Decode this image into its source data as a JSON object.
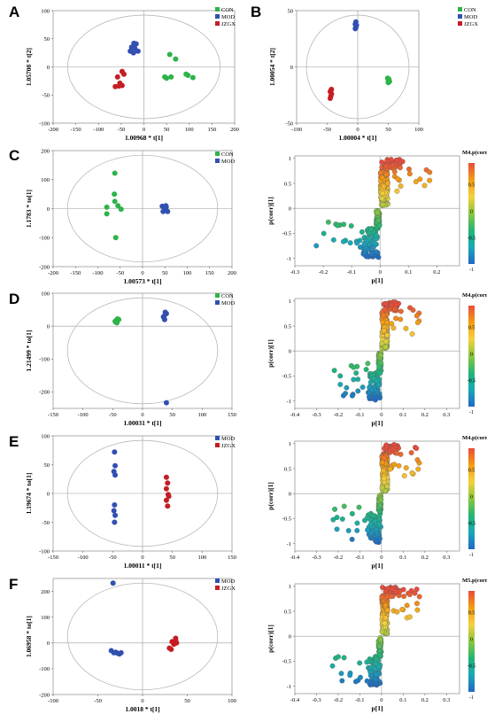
{
  "panel_letters": [
    "A",
    "B",
    "C",
    "D",
    "E",
    "F"
  ],
  "colors": {
    "CON": "#2db34a",
    "MOD": "#3150b0",
    "JZGX": "#c41e24",
    "gradient": [
      "#2166c4",
      "#19a7b8",
      "#22b573",
      "#8dc63f",
      "#f4d03f",
      "#f39c12",
      "#e74c3c"
    ]
  },
  "chart_data": [
    {
      "type": "scatter",
      "panel": "A",
      "xlabel": "1.00968 * t[1]",
      "ylabel": "1.05708 * t[2]",
      "xlim": [
        -200,
        200
      ],
      "ylim": [
        -100,
        100
      ],
      "xticks": [
        -200,
        -150,
        -100,
        -50,
        0,
        50,
        100,
        150,
        200
      ],
      "yticks": [
        -100,
        -50,
        0,
        50,
        100
      ],
      "legend": [
        "CON",
        "MOD",
        "JZGX"
      ],
      "series": [
        {
          "name": "CON",
          "color": "#2db34a",
          "points": [
            [
              57,
              22
            ],
            [
              70,
              14
            ],
            [
              93,
              -13
            ],
            [
              97,
              -15
            ],
            [
              108,
              -19
            ],
            [
              60,
              -18
            ],
            [
              50,
              -20
            ],
            [
              46,
              -18
            ]
          ]
        },
        {
          "name": "MOD",
          "color": "#3150b0",
          "points": [
            [
              -30,
              28
            ],
            [
              -27,
              35
            ],
            [
              -22,
              42
            ],
            [
              -20,
              33
            ],
            [
              -17,
              41
            ],
            [
              -13,
              28
            ],
            [
              -23,
              25
            ]
          ]
        },
        {
          "name": "JZGX",
          "color": "#c41e24",
          "points": [
            [
              -48,
              -8
            ],
            [
              -44,
              -13
            ],
            [
              -58,
              -18
            ],
            [
              -53,
              -29
            ],
            [
              -63,
              -35
            ],
            [
              -55,
              -34
            ],
            [
              -48,
              -33
            ]
          ]
        }
      ]
    },
    {
      "type": "scatter",
      "panel": "B",
      "xlabel": "1.00004 * t[1]",
      "ylabel": "1.00054 * t[2]",
      "xlim": [
        -100,
        100
      ],
      "ylim": [
        -50,
        50
      ],
      "xticks": [
        -100,
        -50,
        0,
        50,
        100
      ],
      "yticks": [
        -50,
        0,
        50
      ],
      "legend": [
        "CON",
        "MOD",
        "JZGX"
      ],
      "series": [
        {
          "name": "CON",
          "color": "#2db34a",
          "points": [
            [
              49,
              -10
            ],
            [
              50,
              -12
            ],
            [
              51,
              -11
            ],
            [
              52,
              -13
            ],
            [
              50,
              -14
            ],
            [
              51,
              -12
            ]
          ]
        },
        {
          "name": "MOD",
          "color": "#3150b0",
          "points": [
            [
              -3,
              35
            ],
            [
              -4,
              38
            ],
            [
              -2,
              37
            ],
            [
              -3,
              40
            ],
            [
              -4,
              34
            ],
            [
              -3,
              36
            ]
          ]
        },
        {
          "name": "JZGX",
          "color": "#c41e24",
          "points": [
            [
              -43,
              -20
            ],
            [
              -45,
              -22
            ],
            [
              -44,
              -26
            ],
            [
              -43,
              -24
            ],
            [
              -45,
              -28
            ],
            [
              -44,
              -21
            ]
          ]
        }
      ]
    },
    {
      "type": "scatter",
      "panel": "C",
      "xlabel": "1.00573 * t[1]",
      "ylabel": "1.1783 * to[1]",
      "xlim": [
        -200,
        200
      ],
      "ylim": [
        -200,
        200
      ],
      "xticks": [
        -200,
        -150,
        -100,
        -50,
        0,
        50,
        100,
        150,
        200
      ],
      "yticks": [
        -200,
        -100,
        0,
        100,
        200
      ],
      "legend": [
        "CON",
        "MOD"
      ],
      "series": [
        {
          "name": "CON",
          "color": "#2db34a",
          "points": [
            [
              -62,
              122
            ],
            [
              -63,
              50
            ],
            [
              -62,
              25
            ],
            [
              -80,
              5
            ],
            [
              -55,
              10
            ],
            [
              -48,
              -2
            ],
            [
              -80,
              -18
            ],
            [
              -60,
              -100
            ]
          ]
        },
        {
          "name": "MOD",
          "color": "#3150b0",
          "points": [
            [
              44,
              8
            ],
            [
              52,
              10
            ],
            [
              50,
              -3
            ],
            [
              56,
              -10
            ],
            [
              46,
              -10
            ],
            [
              53,
              6
            ]
          ]
        }
      ]
    },
    {
      "type": "scatter",
      "panel": "C-loading",
      "xlabel": "p[1]",
      "ylabel": "p(corr)[1]",
      "colorbar_label": "M4.p(corr)[1]",
      "colorbar_ticks": [
        0.5,
        0,
        -0.5,
        -1
      ],
      "xlim": [
        -0.3,
        0.28
      ],
      "ylim": [
        -1.15,
        1.05
      ],
      "xticks": [
        -0.3,
        -0.2,
        -0.1,
        0,
        0.1,
        0.2
      ],
      "yticks": [
        -1,
        -0.5,
        0,
        0.5,
        1
      ],
      "variables": 340
    },
    {
      "type": "scatter",
      "panel": "D",
      "xlabel": "1.00031 * t[1]",
      "ylabel": "1.21499 * to[1]",
      "xlim": [
        -150,
        150
      ],
      "ylim": [
        -250,
        100
      ],
      "xticks": [
        -150,
        -100,
        -50,
        0,
        50,
        100,
        150
      ],
      "yticks": [
        -200,
        -100,
        0,
        100
      ],
      "legend": [
        "CON",
        "MOD"
      ],
      "series": [
        {
          "name": "CON",
          "color": "#2db34a",
          "points": [
            [
              -42,
              22
            ],
            [
              -44,
              18
            ],
            [
              -40,
              20
            ],
            [
              -46,
              15
            ],
            [
              -43,
              10
            ],
            [
              -45,
              12
            ]
          ]
        },
        {
          "name": "MOD",
          "color": "#3150b0",
          "points": [
            [
              38,
              42
            ],
            [
              40,
              38
            ],
            [
              36,
              30
            ],
            [
              37,
              20
            ],
            [
              35,
              28
            ],
            [
              40,
              -233
            ]
          ]
        }
      ]
    },
    {
      "type": "scatter",
      "panel": "D-loading",
      "xlabel": "p[1]",
      "ylabel": "p(corr)[1]",
      "colorbar_label": "M4.p(corr)[1]",
      "colorbar_ticks": [
        0.5,
        0,
        -0.5,
        -1
      ],
      "xlim": [
        -0.4,
        0.36
      ],
      "ylim": [
        -1.15,
        1.05
      ],
      "xticks": [
        -0.4,
        -0.3,
        -0.2,
        -0.1,
        0,
        0.1,
        0.2,
        0.3
      ],
      "yticks": [
        -1,
        -0.5,
        0,
        0.5,
        1
      ],
      "variables": 340
    },
    {
      "type": "scatter",
      "panel": "E",
      "xlabel": "1.00011 * t[1]",
      "ylabel": "1.19674 * to[1]",
      "xlim": [
        -150,
        150
      ],
      "ylim": [
        -100,
        100
      ],
      "xticks": [
        -150,
        -100,
        -50,
        0,
        50,
        100,
        150
      ],
      "yticks": [
        -100,
        -50,
        0,
        50,
        100
      ],
      "legend": [
        "MOD",
        "JZGX"
      ],
      "series": [
        {
          "name": "MOD",
          "color": "#3150b0",
          "points": [
            [
              -47,
              72
            ],
            [
              -46,
              48
            ],
            [
              -48,
              38
            ],
            [
              -46,
              32
            ],
            [
              -47,
              -20
            ],
            [
              -48,
              -30
            ],
            [
              -46,
              -38
            ],
            [
              -47,
              -50
            ]
          ]
        },
        {
          "name": "JZGX",
          "color": "#c41e24",
          "points": [
            [
              40,
              28
            ],
            [
              42,
              18
            ],
            [
              40,
              8
            ],
            [
              43,
              -2
            ],
            [
              40,
              -12
            ],
            [
              42,
              -22
            ],
            [
              44,
              -5
            ]
          ]
        }
      ]
    },
    {
      "type": "scatter",
      "panel": "E-loading",
      "xlabel": "p[1]",
      "ylabel": "p(corr)[1]",
      "colorbar_label": "M4.p(corr)[1]",
      "colorbar_ticks": [
        0.5,
        0,
        -0.5,
        -1
      ],
      "xlim": [
        -0.4,
        0.36
      ],
      "ylim": [
        -1.15,
        1.05
      ],
      "xticks": [
        -0.4,
        -0.3,
        -0.2,
        -0.1,
        0,
        0.1,
        0.2,
        0.3
      ],
      "yticks": [
        -1,
        -0.5,
        0,
        0.5,
        1
      ],
      "variables": 340
    },
    {
      "type": "scatter",
      "panel": "F",
      "xlabel": "1.0018 * t[1]",
      "ylabel": "1.06958 * to[1]",
      "xlim": [
        -100,
        100
      ],
      "ylim": [
        -200,
        250
      ],
      "xticks": [
        -100,
        -50,
        0,
        50,
        100
      ],
      "yticks": [
        -200,
        -100,
        0,
        100,
        200
      ],
      "legend": [
        "MOD",
        "JZGX"
      ],
      "series": [
        {
          "name": "MOD",
          "color": "#3150b0",
          "points": [
            [
              -33,
              232
            ],
            [
              -35,
              -30
            ],
            [
              -32,
              -38
            ],
            [
              -30,
              -36
            ],
            [
              -28,
              -40
            ],
            [
              -26,
              -43
            ],
            [
              -24,
              -38
            ]
          ]
        },
        {
          "name": "JZGX",
          "color": "#c41e24",
          "points": [
            [
              33,
              5
            ],
            [
              37,
              10
            ],
            [
              35,
              -5
            ],
            [
              30,
              -20
            ],
            [
              32,
              -25
            ],
            [
              37,
              18
            ],
            [
              38,
              0
            ]
          ]
        }
      ]
    },
    {
      "type": "scatter",
      "panel": "F-loading",
      "xlabel": "p[1]",
      "ylabel": "p(corr)[1]",
      "colorbar_label": "M5.p(corr)[1]",
      "colorbar_ticks": [
        0.5,
        0,
        -0.5,
        -1
      ],
      "xlim": [
        -0.4,
        0.36
      ],
      "ylim": [
        -1.15,
        1.05
      ],
      "xticks": [
        -0.4,
        -0.3,
        -0.2,
        -0.1,
        0,
        0.1,
        0.2,
        0.3
      ],
      "yticks": [
        -1,
        -0.5,
        0,
        0.5,
        1
      ],
      "variables": 340
    }
  ]
}
